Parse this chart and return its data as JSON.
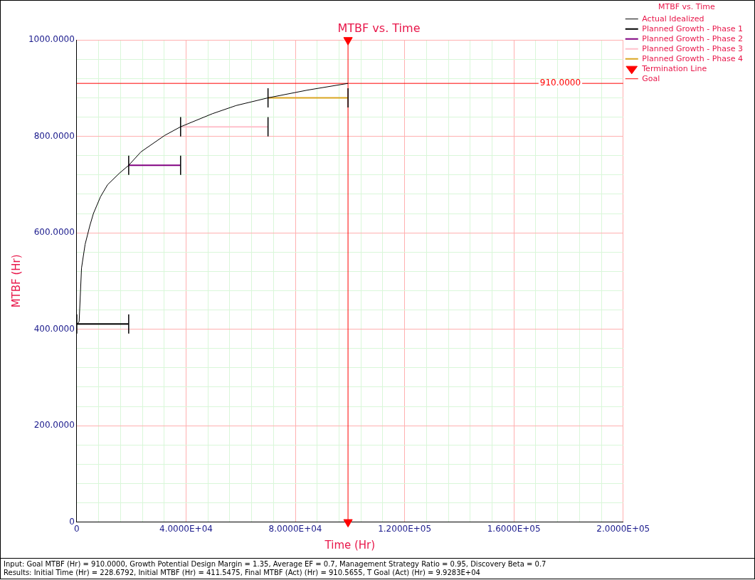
{
  "chart_data": {
    "type": "line",
    "title": "MTBF vs. Time",
    "xlabel": "Time (Hr)",
    "ylabel": "MTBF (Hr)",
    "legend_title": "MTBF vs. Time",
    "legend": "top right",
    "grid": true,
    "xlim": [
      0,
      200000
    ],
    "ylim": [
      0,
      1000
    ],
    "xticks": [
      0,
      {
        "value": 8000,
        "label": null
      },
      {
        "value": 16000,
        "label": null
      },
      {
        "value": 24000,
        "label": null
      },
      {
        "value": 32000,
        "label": null
      },
      {
        "value": 40000,
        "label": "4.0000E+04"
      },
      {
        "value": 48000,
        "label": null
      },
      {
        "value": 56000,
        "label": null
      },
      {
        "value": 64000,
        "label": null
      },
      {
        "value": 72000,
        "label": null
      },
      {
        "value": 80000,
        "label": "8.0000E+04"
      },
      {
        "value": 88000,
        "label": null
      },
      {
        "value": 96000,
        "label": null
      },
      {
        "value": 104000,
        "label": null
      },
      {
        "value": 112000,
        "label": null
      },
      {
        "value": 120000,
        "label": "1.2000E+05"
      },
      {
        "value": 128000,
        "label": null
      },
      {
        "value": 136000,
        "label": null
      },
      {
        "value": 144000,
        "label": null
      },
      {
        "value": 152000,
        "label": null
      },
      {
        "value": 160000,
        "label": "1.6000E+05"
      },
      {
        "value": 168000,
        "label": null
      },
      {
        "value": 176000,
        "label": null
      },
      {
        "value": 184000,
        "label": null
      },
      {
        "value": 192000,
        "label": null
      },
      {
        "value": 200000,
        "label": "2.0000E+05"
      }
    ],
    "yticks": [
      0,
      {
        "value": 40,
        "label": null
      },
      {
        "value": 80,
        "label": null
      },
      {
        "value": 120,
        "label": null
      },
      {
        "value": 160,
        "label": null
      },
      {
        "value": 200,
        "label": "200.0000"
      },
      {
        "value": 240,
        "label": null
      },
      {
        "value": 280,
        "label": null
      },
      {
        "value": 320,
        "label": null
      },
      {
        "value": 360,
        "label": null
      },
      {
        "value": 400,
        "label": "400.0000"
      },
      {
        "value": 440,
        "label": null
      },
      {
        "value": 480,
        "label": null
      },
      {
        "value": 520,
        "label": null
      },
      {
        "value": 560,
        "label": null
      },
      {
        "value": 600,
        "label": "600.0000"
      },
      {
        "value": 640,
        "label": null
      },
      {
        "value": 680,
        "label": null
      },
      {
        "value": 720,
        "label": null
      },
      {
        "value": 760,
        "label": null
      },
      {
        "value": 800,
        "label": "800.0000"
      },
      {
        "value": 840,
        "label": null
      },
      {
        "value": 880,
        "label": null
      },
      {
        "value": 920,
        "label": null
      },
      {
        "value": 960,
        "label": null
      },
      {
        "value": 1000,
        "label": "1000.0000"
      }
    ],
    "series": [
      {
        "name": "Actual Idealized",
        "type": "line",
        "marker": "none",
        "color": "#000000",
        "x": [
          229,
          870,
          1740,
          3050,
          4790,
          6090,
          8700,
          11300,
          15670,
          19000,
          23500,
          32170,
          38000,
          49600,
          58300,
          70000,
          84400,
          99283
        ],
        "values": [
          411,
          416,
          527,
          576,
          615,
          640,
          675,
          700,
          724,
          740,
          768,
          802,
          820,
          847,
          864,
          880,
          896,
          910
        ]
      },
      {
        "name": "Planned Growth - Phase 1",
        "type": "line",
        "marker": "none",
        "color": "#000000",
        "x": [
          0,
          19000
        ],
        "values": [
          411,
          411
        ],
        "errors": [
          20,
          20
        ]
      },
      {
        "name": "Planned Growth - Phase 2",
        "type": "line",
        "marker": "none",
        "color": "#800080",
        "x": [
          19000,
          38000
        ],
        "values": [
          740,
          740
        ],
        "errors": [
          20,
          20
        ]
      },
      {
        "name": "Planned Growth - Phase 3",
        "type": "line",
        "marker": "none",
        "color": "#ffc0cb",
        "x": [
          38000,
          70000
        ],
        "values": [
          820,
          820
        ],
        "errors": [
          20,
          20
        ]
      },
      {
        "name": "Planned Growth - Phase 4",
        "type": "line",
        "marker": "none",
        "color": "#daa520",
        "x": [
          70000,
          99283
        ],
        "values": [
          880,
          880
        ],
        "errors": [
          20,
          20
        ]
      },
      {
        "name": "Termination Line",
        "type": "line",
        "marker": "triangle",
        "color": "#ff0000",
        "x": [
          99283,
          99283
        ],
        "values": [
          0,
          1000
        ]
      },
      {
        "name": "Goal",
        "type": "line",
        "marker": "none",
        "color": "#ff0000",
        "x": [
          0,
          200000
        ],
        "values": [
          910,
          910
        ]
      }
    ],
    "annotations": [
      {
        "text": "910.0000",
        "x": 177000,
        "y": 910
      },
      "Input: Goal MTBF (Hr) = 910.0000, Growth Potential Design Margin = 1.35, Average EF = 0.7, Management Strategy Ratio = 0.95, Discovery Beta = 0.7",
      "Results: Initial Time (Hr) = 228.6792, Initial MTBF (Hr) = 411.5475, Final MTBF (Act) (Hr) = 910.5655, T Goal (Act) (Hr) = 9.9283E+04"
    ]
  }
}
